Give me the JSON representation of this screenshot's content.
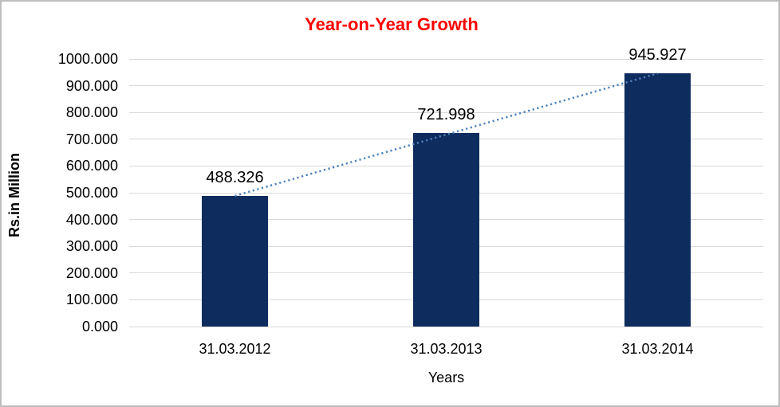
{
  "chart_data": {
    "type": "bar",
    "title": "Year-on-Year Growth",
    "title_color": "#FF0000",
    "xlabel": "Years",
    "ylabel": "Rs.in Million",
    "categories": [
      "31.03.2012",
      "31.03.2013",
      "31.03.2014"
    ],
    "values": [
      488.326,
      721.998,
      945.927
    ],
    "data_labels": [
      "488.326",
      "721.998",
      "945.927"
    ],
    "ylim": [
      0,
      1000
    ],
    "ytick_step": 100,
    "ytick_decimals": 3,
    "grid": "horizontal-only",
    "gridline_color": "#D9D9D9",
    "bar_color": "#0E2C5D",
    "text_color": "#000000",
    "legend": "none",
    "trendline": {
      "type": "linear",
      "style": "dotted",
      "color": "#4F81BD",
      "from_value": 488.326,
      "to_value": 945.927
    }
  },
  "frame": {
    "background": "#FFFFFF",
    "border_color": "#BDBDBD"
  }
}
